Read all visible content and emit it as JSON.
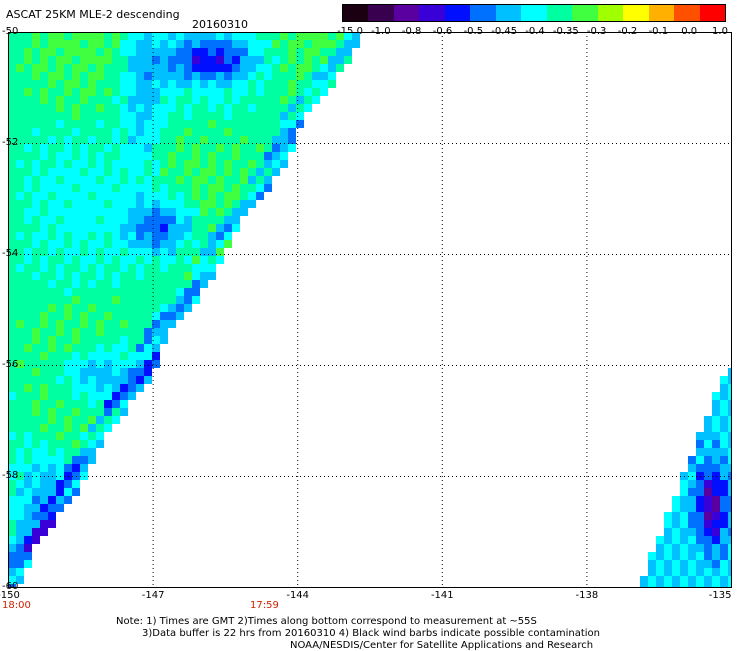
{
  "header": {
    "title": "ASCAT 25KM MLE-2 descending",
    "date": "20160310"
  },
  "colorbar": {
    "labels": [
      "-15.0",
      "-1.0",
      "-0.8",
      "-0.6",
      "-0.5",
      "-0.45",
      "-0.4",
      "-0.35",
      "-0.3",
      "-0.2",
      "-0.1",
      "0.0",
      "1.0"
    ],
    "colors": [
      "#1a0010",
      "#3a0050",
      "#5a00a0",
      "#3a00d8",
      "#0010ff",
      "#0070ff",
      "#00c0ff",
      "#00ffff",
      "#00ffa0",
      "#40ff40",
      "#a0ff00",
      "#ffff00",
      "#ffb000",
      "#ff5000",
      "#ff0000"
    ]
  },
  "axes": {
    "lon_ticks": [
      "-150",
      "-147",
      "-144",
      "-141",
      "-138",
      "-135"
    ],
    "lat_ticks": [
      "-50",
      "-52",
      "-54",
      "-56",
      "-58",
      "-60"
    ]
  },
  "times": {
    "left": "18:00",
    "mid": "17:59"
  },
  "notes": {
    "line1": "Note: 1) Times are GMT 2)Times along bottom correspond to measurement at ~55S",
    "line2": "3)Data buffer is 22 hrs from 20160310 4) Black wind barbs indicate possible contamination",
    "line3": "NOAA/NESDIS/Center for Satellite Applications and Research"
  }
}
